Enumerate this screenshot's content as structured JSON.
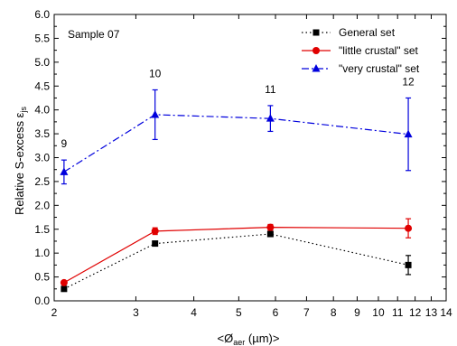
{
  "chart_data": {
    "type": "line",
    "annotation": "Sample 07",
    "xlabel": "<Ø",
    "xlabel_sub": "aer",
    "xlabel_unit": " (µm)>",
    "ylabel": "Relative S-excess ε",
    "ylabel_sub": "js",
    "x_scale": "log",
    "xlim": [
      2,
      14
    ],
    "ylim": [
      0,
      6
    ],
    "x_ticks": [
      2,
      3,
      4,
      5,
      6,
      7,
      8,
      9,
      10,
      11,
      12,
      13,
      14
    ],
    "y_ticks": [
      "0.0",
      "0.5",
      "1.0",
      "1.5",
      "2.0",
      "2.5",
      "3.0",
      "3.5",
      "4.0",
      "4.5",
      "5.0",
      "5.5",
      "6.0"
    ],
    "legend_position": "top-right",
    "series": [
      {
        "name": "General set",
        "color": "#000000",
        "line_style": "dotted",
        "marker": "square",
        "points": [
          {
            "x": 2.1,
            "y": 0.25,
            "err": 0
          },
          {
            "x": 3.3,
            "y": 1.2,
            "err": 0.05
          },
          {
            "x": 5.85,
            "y": 1.4,
            "err": 0.04
          },
          {
            "x": 11.6,
            "y": 0.75,
            "err": 0.2
          }
        ]
      },
      {
        "name": "\"little crustal\" set",
        "color": "#e00000",
        "line_style": "solid",
        "marker": "circle",
        "points": [
          {
            "x": 2.1,
            "y": 0.38,
            "err": 0
          },
          {
            "x": 3.3,
            "y": 1.46,
            "err": 0.07
          },
          {
            "x": 5.85,
            "y": 1.54,
            "err": 0.06
          },
          {
            "x": 11.6,
            "y": 1.52,
            "err": 0.2
          }
        ]
      },
      {
        "name": "\"very crustal\" set",
        "color": "#0000dd",
        "line_style": "dashdot",
        "marker": "triangle",
        "points": [
          {
            "x": 2.1,
            "y": 2.7,
            "err": 0.25
          },
          {
            "x": 3.3,
            "y": 3.9,
            "err": 0.52
          },
          {
            "x": 5.85,
            "y": 3.82,
            "err": 0.27
          },
          {
            "x": 11.6,
            "y": 3.49,
            "err": 0.76
          }
        ]
      }
    ],
    "point_labels": [
      {
        "x": 2.1,
        "y": 2.7,
        "text": "9"
      },
      {
        "x": 3.3,
        "y": 3.9,
        "text": "10"
      },
      {
        "x": 5.85,
        "y": 3.82,
        "text": "11"
      },
      {
        "x": 11.6,
        "y": 3.49,
        "text": "12"
      }
    ]
  }
}
